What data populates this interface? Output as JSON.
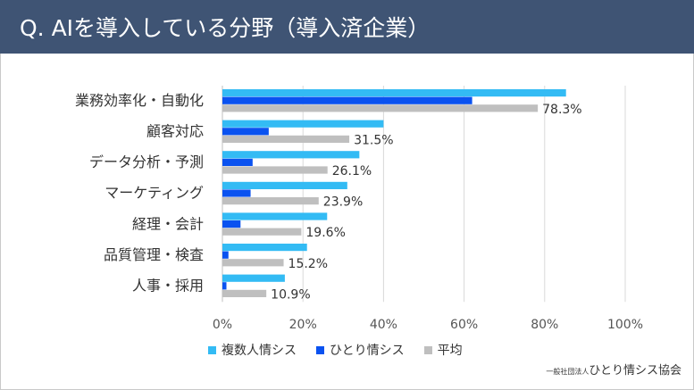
{
  "title": "Q. AIを導入している分野（導入済企業）",
  "colors": {
    "header_bg": "#3f5474",
    "multi": "#33bbf4",
    "solo": "#0a52f0",
    "avg": "#bfbfbf"
  },
  "footer": {
    "org_prefix": "一般社団法人",
    "org_name": "ひとり情シス協会"
  },
  "chart_data": {
    "type": "bar",
    "orientation": "horizontal",
    "title": "Q. AIを導入している分野（導入済企業）",
    "categories": [
      "業務効率化・自動化",
      "顧客対応",
      "データ分析・予測",
      "マーケティング",
      "経理・会計",
      "品質管理・検査",
      "人事・採用"
    ],
    "series": [
      {
        "name": "複数人情シス",
        "color": "#33bbf4",
        "values": [
          85.3,
          40.0,
          34.0,
          31.0,
          26.0,
          21.0,
          15.5
        ]
      },
      {
        "name": "ひとり情シス",
        "color": "#0a52f0",
        "values": [
          62.0,
          11.5,
          7.5,
          7.0,
          4.5,
          1.5,
          1.0
        ]
      },
      {
        "name": "平均",
        "color": "#bfbfbf",
        "values": [
          78.3,
          31.5,
          26.1,
          23.9,
          19.6,
          15.2,
          10.9
        ]
      }
    ],
    "data_labels": [
      "78.3%",
      "31.5%",
      "26.1%",
      "23.9%",
      "19.6%",
      "15.2%",
      "10.9%"
    ],
    "x_ticks": [
      "0%",
      "20%",
      "40%",
      "60%",
      "80%",
      "100%"
    ],
    "xlim": [
      0,
      100
    ],
    "legend_position": "bottom",
    "grid": true
  }
}
